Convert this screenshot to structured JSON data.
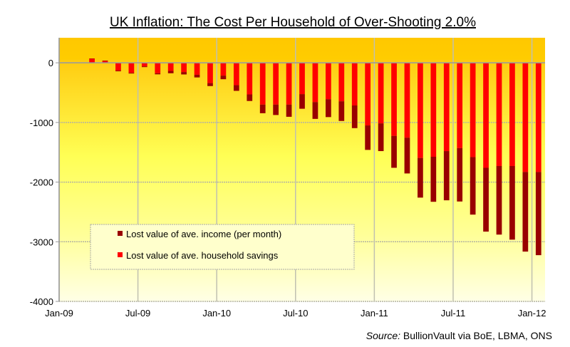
{
  "chart_data": {
    "type": "bar",
    "stacked": true,
    "title": "UK Inflation:  The Cost Per Household  of Over-Shooting  2.0%",
    "xlabel": "",
    "ylabel": "",
    "ylim": [
      -4000,
      420
    ],
    "yticks": [
      0,
      -1000,
      -2000,
      -3000,
      -4000
    ],
    "ytick_labels": [
      "0",
      "-1000",
      "-2000",
      "-3000",
      "-4000"
    ],
    "xtick_labels": [
      "Jan-09",
      "Jul-09",
      "Jan-10",
      "Jul-10",
      "Jan-11",
      "Jul-11",
      "Jan-12"
    ],
    "xtick_month_index": [
      0,
      6,
      12,
      18,
      24,
      30,
      36
    ],
    "grid": true,
    "legend_position": "lower-left",
    "categories": [
      "Jan-09",
      "Feb-09",
      "Mar-09",
      "Apr-09",
      "May-09",
      "Jun-09",
      "Jul-09",
      "Aug-09",
      "Sep-09",
      "Oct-09",
      "Nov-09",
      "Dec-09",
      "Jan-10",
      "Feb-10",
      "Mar-10",
      "Apr-10",
      "May-10",
      "Jun-10",
      "Jul-10",
      "Aug-10",
      "Sep-10",
      "Oct-10",
      "Nov-10",
      "Dec-10",
      "Jan-11",
      "Feb-11",
      "Mar-11",
      "Apr-11",
      "May-11",
      "Jun-11",
      "Jul-11",
      "Aug-11",
      "Sep-11",
      "Oct-11",
      "Nov-11",
      "Dec-11",
      "Jan-12"
    ],
    "series": [
      {
        "name": "Lost value of ave. household savings",
        "color": "#ff0000",
        "values": [
          0,
          0,
          68,
          30,
          -130,
          -168,
          -60,
          -175,
          -135,
          -155,
          -200,
          -340,
          -215,
          -375,
          -530,
          -700,
          -700,
          -700,
          -525,
          -658,
          -610,
          -645,
          -715,
          -1050,
          -1015,
          -1225,
          -1255,
          -1595,
          -1575,
          -1480,
          -1430,
          -1580,
          -1760,
          -1730,
          -1730,
          -1830,
          -1830
        ]
      },
      {
        "name": "Lost value of ave. income (per month)",
        "color": "#990000",
        "values": [
          0,
          0,
          5,
          8,
          -12,
          -12,
          -12,
          -18,
          -40,
          -40,
          -45,
          -50,
          -60,
          -95,
          -110,
          -145,
          -175,
          -205,
          -245,
          -282,
          -300,
          -330,
          -380,
          -410,
          -465,
          -535,
          -600,
          -665,
          -755,
          -825,
          -895,
          -965,
          -1070,
          -1150,
          -1235,
          -1335,
          -1395
        ]
      }
    ],
    "legend": [
      {
        "label": "Lost value of ave. income (per month)",
        "color": "#990000"
      },
      {
        "label": "Lost value of ave. household savings",
        "color": "#ff0000"
      }
    ],
    "source_prefix": "Source:",
    "source_text": " BullionVault via BoE, LBMA, ONS"
  }
}
